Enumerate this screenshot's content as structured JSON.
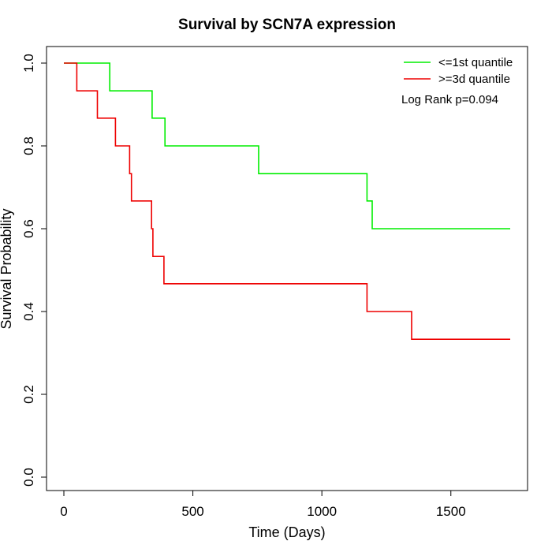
{
  "chart_data": {
    "type": "line",
    "title": "Survival by SCN7A expression",
    "xlabel": "Time (Days)",
    "ylabel": "Survival Probability",
    "xlim": [
      0,
      1730
    ],
    "ylim": [
      0,
      1
    ],
    "x_ticks": [
      0,
      500,
      1000,
      1500
    ],
    "x_tick_labels": [
      "0",
      "500",
      "1000",
      "1500"
    ],
    "y_ticks": [
      0,
      0.2,
      0.4,
      0.6,
      0.8,
      1.0
    ],
    "y_tick_labels": [
      "0.0",
      "0.2",
      "0.4",
      "0.6",
      "0.8",
      "1.0"
    ],
    "grid": false,
    "legend_position": "top-right",
    "annotation": "Log Rank p=0.094",
    "series": [
      {
        "name": "<=1st quantile",
        "color": "#00ee00",
        "x": [
          0,
          178,
          178,
          342,
          342,
          392,
          392,
          755,
          755,
          1175,
          1175,
          1195,
          1195,
          1730
        ],
        "y": [
          1.0,
          1.0,
          0.933,
          0.933,
          0.867,
          0.867,
          0.8,
          0.8,
          0.733,
          0.733,
          0.667,
          0.667,
          0.6,
          0.6
        ]
      },
      {
        "name": ">=3d quantile",
        "color": "#ee0000",
        "x": [
          0,
          50,
          50,
          130,
          130,
          200,
          200,
          255,
          255,
          262,
          262,
          340,
          340,
          345,
          345,
          388,
          388,
          1175,
          1175,
          1348,
          1348,
          1730
        ],
        "y": [
          1.0,
          1.0,
          0.933,
          0.933,
          0.867,
          0.867,
          0.8,
          0.8,
          0.733,
          0.733,
          0.667,
          0.667,
          0.6,
          0.6,
          0.533,
          0.533,
          0.467,
          0.467,
          0.4,
          0.4,
          0.333,
          0.333
        ]
      }
    ]
  }
}
